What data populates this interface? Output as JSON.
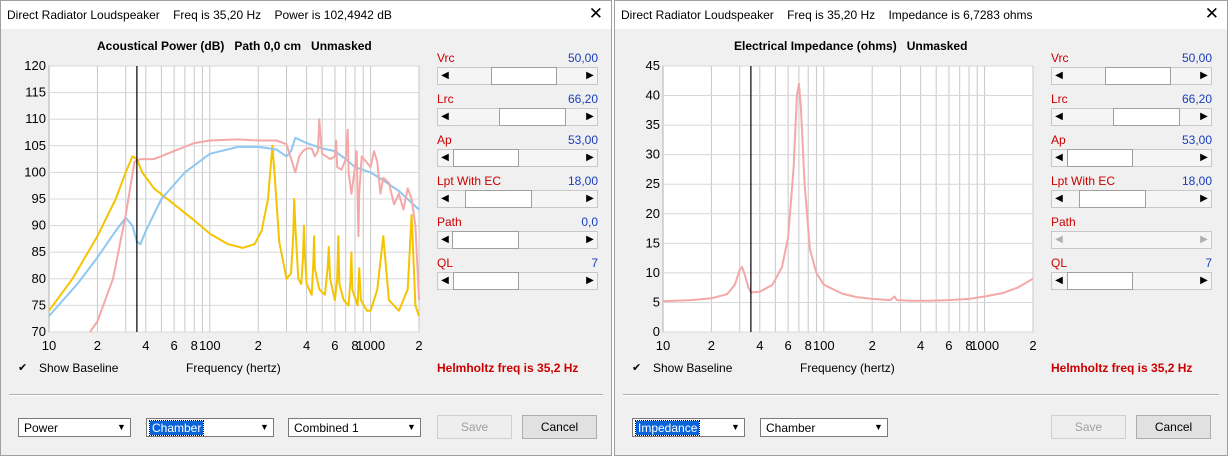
{
  "windowA": {
    "title": "Direct Radiator Loudspeaker    Freq is 35,20 Hz    Power is 102,4942 dB",
    "close_icon": "close-icon",
    "chart_title": "Acoustical Power (dB)   Path 0,0 cm   Unmasked",
    "xlabel": "Frequency (hertz)",
    "show_baseline": "Show Baseline",
    "helmholtz": "Helmholtz freq is 35,2 Hz",
    "combo1": "Power",
    "combo2": "Chamber",
    "combo3": "Combined 1",
    "save": "Save",
    "cancel": "Cancel",
    "sliders": [
      {
        "label": "Vrc",
        "value": "50,00",
        "pos": 0.58
      },
      {
        "label": "Lrc",
        "value": "66,20",
        "pos": 0.71
      },
      {
        "label": "Ap",
        "value": "53,00",
        "pos": 0.01
      },
      {
        "label": "Lpt  With EC",
        "value": "18,00",
        "pos": 0.2
      },
      {
        "label": "Path",
        "value": "0,0",
        "pos": 0.0
      },
      {
        "label": "QL",
        "value": "7",
        "pos": 0.01
      }
    ]
  },
  "windowB": {
    "title": "Direct Radiator Loudspeaker    Freq is 35,20 Hz    Impedance is 6,7283 ohms",
    "close_icon": "close-icon",
    "chart_title": "Electrical Impedance (ohms)   Unmasked",
    "xlabel": "Frequency (hertz)",
    "show_baseline": "Show Baseline",
    "helmholtz": "Helmholtz freq is 35,2 Hz",
    "combo1": "Impedance",
    "combo2": "Chamber",
    "save": "Save",
    "cancel": "Cancel",
    "sliders": [
      {
        "label": "Vrc",
        "value": "50,00",
        "pos": 0.58
      },
      {
        "label": "Lrc",
        "value": "66,20",
        "pos": 0.71
      },
      {
        "label": "Ap",
        "value": "53,00",
        "pos": 0.01
      },
      {
        "label": "Lpt  With EC",
        "value": "18,00",
        "pos": 0.2
      },
      {
        "label": "Path",
        "value": "",
        "pos": 0.0,
        "disabled": true
      },
      {
        "label": "QL",
        "value": "7",
        "pos": 0.01
      }
    ]
  },
  "chart_data": [
    {
      "type": "line",
      "title": "Acoustical Power (dB)   Path 0,0 cm   Unmasked",
      "xlabel": "Frequency (hertz)",
      "x_scale": "log",
      "xlim": [
        10,
        2000
      ],
      "ylim": [
        70,
        120
      ],
      "yticks": [
        70,
        75,
        80,
        85,
        90,
        95,
        100,
        105,
        110,
        115,
        120
      ],
      "xtick_labels": [
        "10",
        "2",
        "4",
        "6",
        "8",
        "100",
        "2",
        "4",
        "6",
        "8",
        "1000",
        "2"
      ],
      "cursor_x": 35.2,
      "colors": {
        "yellow": "#f5c400",
        "blue": "#8fc8f0",
        "pink": "#f4a8a8"
      },
      "series": [
        {
          "color": "#f5c400",
          "points": [
            [
              10,
              74
            ],
            [
              14,
              80
            ],
            [
              20,
              88
            ],
            [
              26,
              95
            ],
            [
              30,
              100
            ],
            [
              33,
              103
            ],
            [
              35.2,
              102.5
            ],
            [
              38,
              100
            ],
            [
              45,
              97
            ],
            [
              60,
              94
            ],
            [
              80,
              91
            ],
            [
              100,
              88.5
            ],
            [
              130,
              86.5
            ],
            [
              160,
              85.8
            ],
            [
              190,
              86.5
            ],
            [
              210,
              89
            ],
            [
              230,
              95
            ],
            [
              245,
              105
            ],
            [
              255,
              98
            ],
            [
              270,
              87
            ],
            [
              300,
              80
            ],
            [
              320,
              81
            ],
            [
              330,
              88
            ],
            [
              335,
              95
            ],
            [
              340,
              90
            ],
            [
              355,
              80
            ],
            [
              370,
              79
            ],
            [
              380,
              84
            ],
            [
              385,
              90
            ],
            [
              390,
              85
            ],
            [
              400,
              79
            ],
            [
              430,
              77
            ],
            [
              440,
              83
            ],
            [
              445,
              88
            ],
            [
              450,
              82
            ],
            [
              480,
              78
            ],
            [
              520,
              77
            ],
            [
              540,
              82
            ],
            [
              550,
              86
            ],
            [
              560,
              80
            ],
            [
              600,
              76
            ],
            [
              620,
              80
            ],
            [
              630,
              88
            ],
            [
              640,
              79
            ],
            [
              680,
              76
            ],
            [
              730,
              75
            ],
            [
              750,
              80
            ],
            [
              760,
              85
            ],
            [
              770,
              78
            ],
            [
              830,
              75
            ],
            [
              850,
              82
            ],
            [
              870,
              76
            ],
            [
              950,
              74
            ],
            [
              1000,
              74
            ],
            [
              1100,
              78
            ],
            [
              1200,
              88
            ],
            [
              1300,
              76
            ],
            [
              1500,
              74
            ],
            [
              1700,
              78
            ],
            [
              1800,
              92
            ],
            [
              1900,
              75
            ],
            [
              2000,
              73
            ]
          ]
        },
        {
          "color": "#8fc8f0",
          "points": [
            [
              10,
              73
            ],
            [
              15,
              79
            ],
            [
              20,
              84
            ],
            [
              26,
              89
            ],
            [
              30,
              91.5
            ],
            [
              33,
              90
            ],
            [
              35.2,
              87
            ],
            [
              37,
              86.5
            ],
            [
              40,
              89
            ],
            [
              50,
              95
            ],
            [
              70,
              100
            ],
            [
              100,
              103.5
            ],
            [
              150,
              104.8
            ],
            [
              200,
              104.8
            ],
            [
              260,
              104.3
            ],
            [
              300,
              103
            ],
            [
              320,
              104
            ],
            [
              340,
              106.5
            ],
            [
              400,
              105.5
            ],
            [
              500,
              104.5
            ],
            [
              600,
              104
            ],
            [
              700,
              102.5
            ],
            [
              800,
              101
            ],
            [
              1000,
              100
            ],
            [
              1200,
              98.5
            ],
            [
              1500,
              96.5
            ],
            [
              2000,
              93
            ]
          ]
        },
        {
          "color": "#f4a8a8",
          "points": [
            [
              18,
              70
            ],
            [
              20,
              72
            ],
            [
              25,
              80
            ],
            [
              30,
              92
            ],
            [
              34,
              102
            ],
            [
              37,
              102.5
            ],
            [
              45,
              102.5
            ],
            [
              60,
              104
            ],
            [
              80,
              105.5
            ],
            [
              100,
              106
            ],
            [
              150,
              106.2
            ],
            [
              200,
              106
            ],
            [
              260,
              106
            ],
            [
              300,
              105.3
            ],
            [
              340,
              100
            ],
            [
              360,
              103
            ],
            [
              380,
              104
            ],
            [
              400,
              104.5
            ],
            [
              430,
              104.5
            ],
            [
              450,
              103
            ],
            [
              470,
              104
            ],
            [
              480,
              110
            ],
            [
              490,
              106
            ],
            [
              500,
              103.5
            ],
            [
              560,
              102.5
            ],
            [
              600,
              103
            ],
            [
              610,
              106
            ],
            [
              620,
              101
            ],
            [
              660,
              100.5
            ],
            [
              700,
              102.5
            ],
            [
              720,
              108
            ],
            [
              730,
              100
            ],
            [
              760,
              96
            ],
            [
              800,
              101
            ],
            [
              820,
              104
            ],
            [
              840,
              88
            ],
            [
              850,
              96
            ],
            [
              880,
              103
            ],
            [
              1000,
              101
            ],
            [
              1050,
              104
            ],
            [
              1100,
              102
            ],
            [
              1150,
              96
            ],
            [
              1200,
              99
            ],
            [
              1300,
              98
            ],
            [
              1400,
              94
            ],
            [
              1500,
              96
            ],
            [
              1600,
              93
            ],
            [
              1700,
              97
            ],
            [
              1800,
              95
            ],
            [
              1900,
              90
            ],
            [
              2000,
              76
            ]
          ]
        }
      ]
    },
    {
      "type": "line",
      "title": "Electrical Impedance (ohms)   Unmasked",
      "xlabel": "Frequency (hertz)",
      "x_scale": "log",
      "xlim": [
        10,
        2000
      ],
      "ylim": [
        0,
        45
      ],
      "yticks": [
        0,
        5,
        10,
        15,
        20,
        25,
        30,
        35,
        40,
        45
      ],
      "xtick_labels": [
        "10",
        "2",
        "4",
        "6",
        "8",
        "100",
        "2",
        "4",
        "6",
        "8",
        "1000",
        "2"
      ],
      "cursor_x": 35.2,
      "series": [
        {
          "color": "#f4a8a8",
          "points": [
            [
              10,
              5.2
            ],
            [
              15,
              5.4
            ],
            [
              20,
              5.7
            ],
            [
              25,
              6.4
            ],
            [
              28,
              8
            ],
            [
              30,
              10.5
            ],
            [
              31,
              11
            ],
            [
              32,
              10
            ],
            [
              34,
              7.5
            ],
            [
              35.2,
              6.7
            ],
            [
              40,
              6.8
            ],
            [
              48,
              8
            ],
            [
              55,
              11
            ],
            [
              60,
              16
            ],
            [
              65,
              28
            ],
            [
              68,
              40
            ],
            [
              70,
              42
            ],
            [
              72,
              38
            ],
            [
              76,
              25
            ],
            [
              82,
              14
            ],
            [
              90,
              10
            ],
            [
              100,
              8
            ],
            [
              130,
              6.5
            ],
            [
              160,
              5.9
            ],
            [
              200,
              5.6
            ],
            [
              260,
              5.4
            ],
            [
              275,
              6
            ],
            [
              285,
              5.4
            ],
            [
              350,
              5.3
            ],
            [
              450,
              5.3
            ],
            [
              600,
              5.4
            ],
            [
              800,
              5.6
            ],
            [
              1000,
              6
            ],
            [
              1300,
              6.6
            ],
            [
              1600,
              7.5
            ],
            [
              2000,
              9
            ]
          ]
        }
      ]
    }
  ]
}
